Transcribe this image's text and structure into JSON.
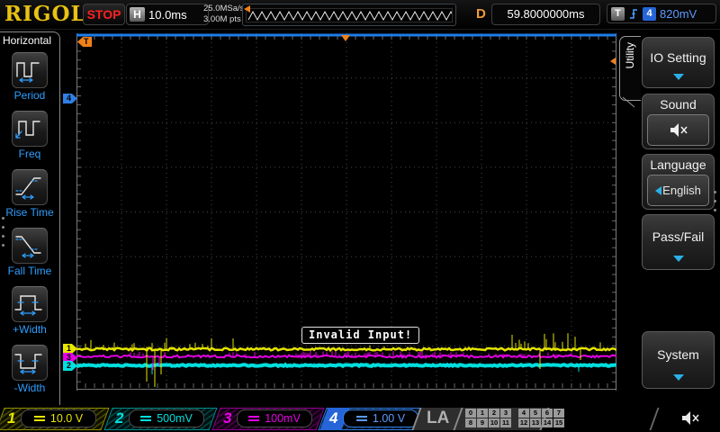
{
  "top_bar": {
    "logo": "RIGOL",
    "run_state": "STOP",
    "h_label": "H",
    "timebase": "10.0ms",
    "sample_rate": "25.0MSa/s",
    "mem_depth": "3.00M pts",
    "delay_label": "D",
    "delay_value": "59.8000000ms",
    "trigger_label": "T",
    "trigger_source": "4",
    "trigger_level": "820mV",
    "icons": {
      "trigger_edge": "rising-edge-icon",
      "preview_marker": "trigger-position-arrow-icon"
    }
  },
  "left_menu": {
    "title": "Horizontal",
    "items": [
      {
        "label": "Period",
        "icon": "period-icon"
      },
      {
        "label": "Freq",
        "icon": "freq-icon"
      },
      {
        "label": "Rise Time",
        "icon": "rise-time-icon"
      },
      {
        "label": "Fall Time",
        "icon": "fall-time-icon"
      },
      {
        "label": "+Width",
        "icon": "plus-width-icon"
      },
      {
        "label": "-Width",
        "icon": "minus-width-icon"
      }
    ],
    "page_dots": 4
  },
  "right_menu": {
    "tab_label": "Utility",
    "io_setting": "IO Setting",
    "sound": "Sound",
    "sound_icon": "speaker-muted-icon",
    "language_label": "Language",
    "language_value": "English",
    "pass_fail": "Pass/Fail",
    "system": "System",
    "page_dots": 3
  },
  "display": {
    "message": "Invalid Input!",
    "markers": {
      "trigger": "T",
      "ch1": "1",
      "ch2": "2",
      "ch3": "3",
      "ch4": "4"
    },
    "marker_colors": {
      "trigger": "#f08018",
      "ch1": "#e6e600",
      "ch2": "#00e0e0",
      "ch3": "#e600e6",
      "ch4": "#2f7fe6"
    },
    "traces": [
      {
        "channel": "4",
        "color": "#1e7ce8",
        "baseline": 2,
        "thickness": 3,
        "jitter": 0,
        "regions": [],
        "down_spikes": []
      },
      {
        "channel": "2",
        "color": "#00dede",
        "baseline": 369,
        "thickness": 4,
        "jitter": 0.8,
        "regions": [
          [
            150,
            450,
            3,
            0.25
          ]
        ],
        "down_spikes": [
          [
            84,
            10
          ],
          [
            558,
            7
          ]
        ]
      },
      {
        "channel": "3",
        "color": "#e400e4",
        "baseline": 359,
        "thickness": 2,
        "jitter": 1.3,
        "regions": [
          [
            240,
            440,
            6,
            0.5
          ],
          [
            60,
            200,
            5,
            0.2
          ],
          [
            450,
            560,
            5,
            0.3
          ]
        ],
        "down_spikes": [
          [
            85,
            15
          ],
          [
            92,
            10
          ]
        ]
      },
      {
        "channel": "1",
        "color": "#e4e400",
        "baseline": 351,
        "thickness": 2.5,
        "jitter": 1.3,
        "regions": [
          [
            8,
            180,
            13,
            0.25
          ],
          [
            480,
            595,
            18,
            0.28
          ],
          [
            200,
            470,
            5,
            0.06
          ]
        ],
        "down_spikes": [
          [
            78,
            36
          ],
          [
            87,
            42
          ],
          [
            94,
            28
          ],
          [
            515,
            22
          ],
          [
            560,
            12
          ]
        ]
      }
    ]
  },
  "bottom_bar": {
    "channels": [
      {
        "num": "1",
        "scale": "10.0 V",
        "color": "#e6e600",
        "selected": false
      },
      {
        "num": "2",
        "scale": "500mV",
        "color": "#00e0e0",
        "selected": false
      },
      {
        "num": "3",
        "scale": "100mV",
        "color": "#e600e6",
        "selected": false
      },
      {
        "num": "4",
        "scale": "1.00 V",
        "color": "#2f7fe6",
        "selected": true
      }
    ],
    "la_label": "LA",
    "la_digits": [
      "0",
      "1",
      "2",
      "3",
      "4",
      "5",
      "6",
      "7",
      "8",
      "9",
      "10",
      "11",
      "12",
      "13",
      "14",
      "15"
    ],
    "status_icon": "speaker-muted-icon"
  }
}
